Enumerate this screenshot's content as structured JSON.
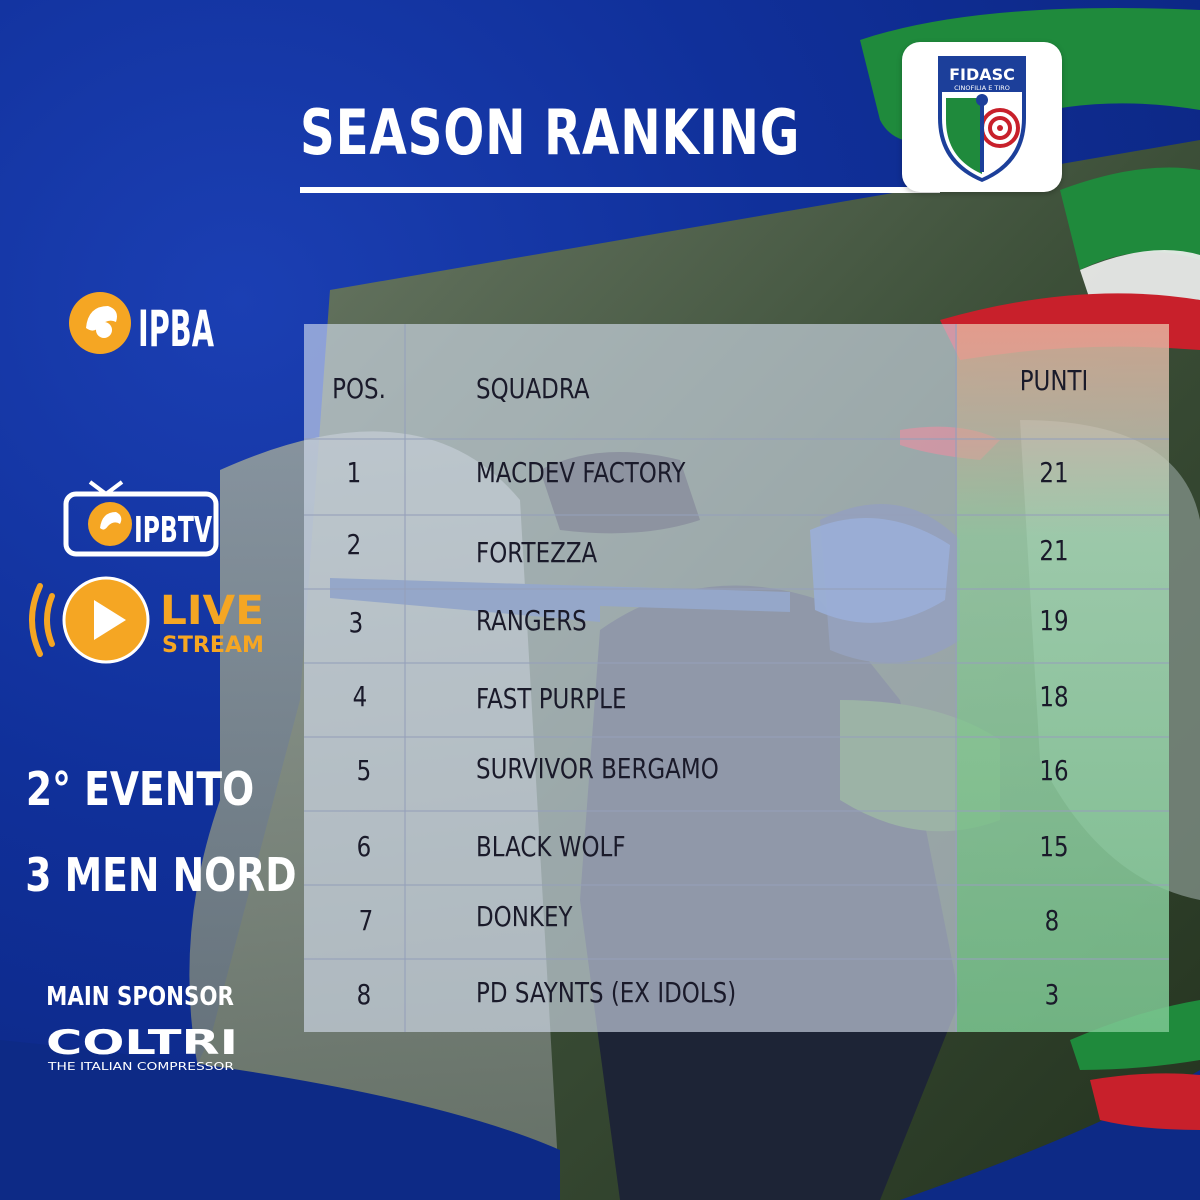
{
  "title": "SEASON RANKING",
  "logos": {
    "fidasc_text": "FIDASC",
    "fidasc_sub": "CINOFILIA E TIRO",
    "ipba": "IPBA",
    "ipbtv": "IPBTV",
    "live": "LIVE",
    "stream": "STREAM",
    "coltri": "COLTRI",
    "coltri_sub": "THE ITALIAN COMPRESSOR"
  },
  "event": {
    "line1": "2° EVENTO",
    "line2": "3 MEN NORD"
  },
  "sponsor_label": "MAIN SPONSOR",
  "table": {
    "headers": {
      "pos": "POS.",
      "team": "SQUADRA",
      "points": "PUNTI"
    },
    "rows": [
      {
        "pos": "1",
        "team": "MACDEV FACTORY",
        "points": "21"
      },
      {
        "pos": "2",
        "team": "FORTEZZA",
        "points": "21"
      },
      {
        "pos": "3",
        "team": "RANGERS",
        "points": "19"
      },
      {
        "pos": "4",
        "team": "FAST PURPLE",
        "points": "18"
      },
      {
        "pos": "5",
        "team": "SURVIVOR BERGAMO",
        "points": "16"
      },
      {
        "pos": "6",
        "team": "BLACK WOLF",
        "points": "15"
      },
      {
        "pos": "7",
        "team": "DONKEY",
        "points": "8"
      },
      {
        "pos": "8",
        "team": "PD SAYNTS (EX IDOLS)",
        "points": "3"
      }
    ]
  },
  "colors": {
    "background_blue": "#10309a",
    "accent_orange": "#f5a623",
    "flag_green": "#1f8a3c",
    "flag_red": "#c8202b"
  }
}
